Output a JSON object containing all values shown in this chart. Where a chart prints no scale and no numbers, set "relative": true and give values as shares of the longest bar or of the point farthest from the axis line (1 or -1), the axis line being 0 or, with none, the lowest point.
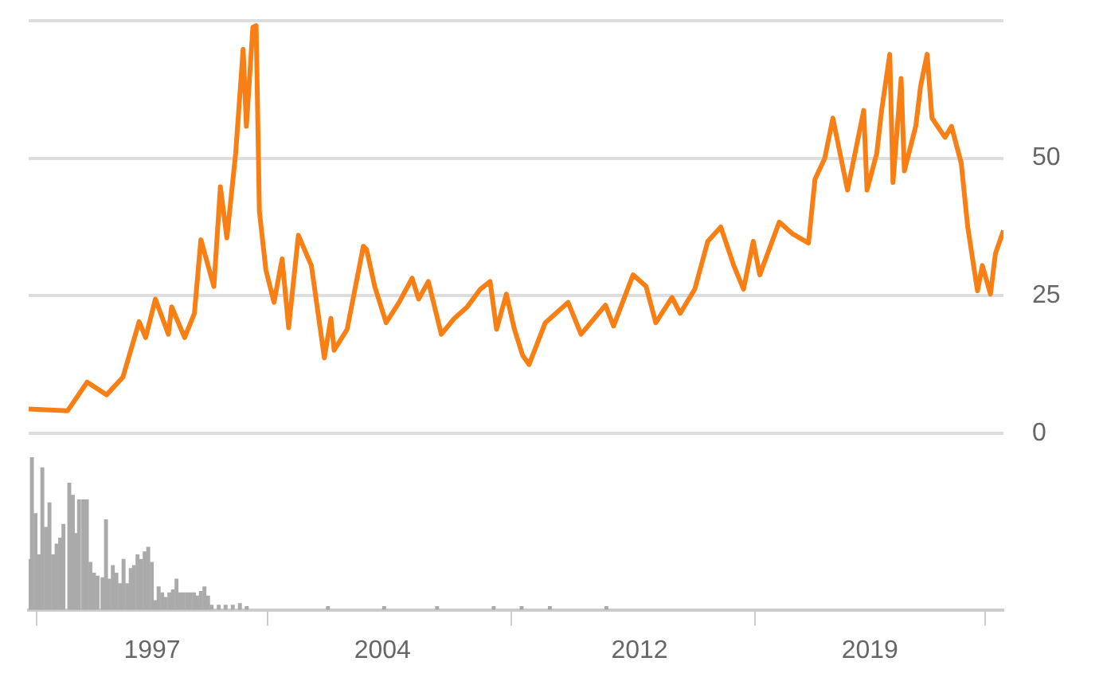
{
  "chart_data": [
    {
      "type": "line",
      "x": [
        1993.6,
        1994.8,
        1995.4,
        1996.0,
        1996.5,
        1997.0,
        1997.2,
        1997.5,
        1997.9,
        1998.0,
        1998.4,
        1998.7,
        1998.9,
        1999.3,
        1999.5,
        1999.7,
        1999.97,
        2000.2,
        2000.3,
        2000.5,
        2000.6,
        2000.7,
        2000.9,
        2001.15,
        2001.4,
        2001.6,
        2001.9,
        2002.3,
        2002.7,
        2002.9,
        2003.0,
        2003.4,
        2003.9,
        2004.0,
        2004.25,
        2004.6,
        2005.0,
        2005.4,
        2005.6,
        2005.9,
        2006.3,
        2006.7,
        2007.1,
        2007.5,
        2007.8,
        2008.0,
        2008.3,
        2008.55,
        2008.8,
        2009.0,
        2009.5,
        2010.2,
        2010.6,
        2011.35,
        2011.6,
        2012.2,
        2012.6,
        2012.9,
        2013.4,
        2013.65,
        2014.1,
        2014.5,
        2014.9,
        2015.3,
        2015.6,
        2015.9,
        2016.1,
        2016.7,
        2017.1,
        2017.6,
        2017.8,
        2018.1,
        2018.35,
        2018.8,
        2019.3,
        2019.4,
        2019.7,
        2019.85,
        2020.1,
        2020.2,
        2020.45,
        2020.55,
        2020.9,
        2021.05,
        2021.25,
        2021.4,
        2021.8,
        2022.0,
        2022.3,
        2022.5,
        2022.8,
        2022.95,
        2023.2,
        2023.35,
        2023.6
      ],
      "series": [
        {
          "color": "#f77f14",
          "values": [
            4.4,
            4.1,
            9.3,
            7.0,
            10.2,
            20.3,
            17.4,
            24.4,
            18.0,
            23.0,
            17.4,
            21.8,
            35.2,
            26.7,
            44.8,
            35.5,
            50.9,
            69.8,
            55.8,
            73.8,
            74.1,
            40.4,
            29.7,
            23.8,
            31.7,
            19.2,
            36.0,
            30.5,
            13.7,
            20.9,
            15.1,
            18.9,
            34.0,
            33.4,
            26.7,
            20.1,
            23.8,
            28.2,
            24.4,
            27.6,
            18.0,
            20.9,
            23.0,
            26.2,
            27.6,
            18.9,
            25.3,
            18.9,
            14.2,
            12.5,
            20.1,
            23.8,
            18.0,
            23.3,
            19.5,
            28.8,
            26.7,
            20.1,
            24.7,
            21.8,
            26.2,
            34.9,
            37.5,
            30.5,
            26.2,
            34.9,
            28.8,
            38.4,
            36.3,
            34.6,
            46.2,
            50.0,
            57.3,
            44.2,
            58.7,
            44.2,
            50.9,
            58.7,
            68.9,
            45.6,
            64.5,
            47.7,
            55.8,
            63.1,
            68.9,
            57.3,
            53.8,
            55.8,
            49.1,
            37.5,
            25.9,
            30.5,
            25.3,
            32.6,
            36.9
          ]
        }
      ],
      "xlim": [
        1993.6,
        2023.6
      ],
      "ylim": [
        0,
        75
      ],
      "yticks": [
        0,
        25,
        50
      ],
      "grid": "y",
      "tick_labels": "y",
      "legend": false,
      "marker": "none",
      "line_style": "solid"
    },
    {
      "type": "bar",
      "relative": true,
      "x": [
        1993.6,
        1993.7,
        1993.81,
        1993.92,
        1994.02,
        1994.13,
        1994.24,
        1994.35,
        1994.46,
        1994.57,
        1994.67,
        1994.85,
        1994.96,
        1995.06,
        1995.15,
        1995.28,
        1995.39,
        1995.5,
        1995.61,
        1995.72,
        1995.87,
        1995.98,
        1996.08,
        1996.19,
        1996.3,
        1996.41,
        1996.52,
        1996.63,
        1996.74,
        1996.84,
        1996.95,
        1997.06,
        1997.17,
        1997.28,
        1997.39,
        1997.49,
        1997.6,
        1997.71,
        1997.82,
        1997.93,
        1998.04,
        1998.15,
        1998.25,
        1998.36,
        1998.47,
        1998.58,
        1998.69,
        1998.8,
        1998.9,
        1999.01,
        1999.12,
        1999.23,
        1999.45,
        1999.66,
        1999.88,
        2000.1,
        2000.31,
        2002.81,
        2004.54,
        2006.17,
        2007.91,
        2008.77,
        2009.64,
        2011.38
      ],
      "series": [
        {
          "color": "#aaaaaa",
          "values": [
            0.33,
            1,
            0.63,
            0.36,
            0.93,
            0.54,
            0.7,
            0.36,
            0.43,
            0.47,
            0.56,
            0.83,
            0.75,
            0.5,
            0.72,
            0.72,
            0.72,
            0.31,
            0.24,
            0.22,
            0.21,
            0.59,
            0.2,
            0.29,
            0.24,
            0.17,
            0.33,
            0.17,
            0.27,
            0.29,
            0.36,
            0.33,
            0.38,
            0.41,
            0.31,
            0.06,
            0.15,
            0.11,
            0.08,
            0.11,
            0.13,
            0.2,
            0.11,
            0.11,
            0.11,
            0.11,
            0.11,
            0.09,
            0.12,
            0.15,
            0.09,
            0.03,
            0.03,
            0.03,
            0.03,
            0.04,
            0.02,
            0.02,
            0.02,
            0.02,
            0.02,
            0.02,
            0.02,
            0.02
          ]
        }
      ],
      "xlim": [
        1993.6,
        2023.6
      ],
      "xticks": [
        {
          "value": 1997.4,
          "label": "1997"
        },
        {
          "value": 2004.49,
          "label": "2004"
        },
        {
          "value": 2012.4,
          "label": "2012"
        },
        {
          "value": 2019.49,
          "label": "2019"
        }
      ],
      "grid": false,
      "tick_labels": "x",
      "legend": false
    }
  ]
}
